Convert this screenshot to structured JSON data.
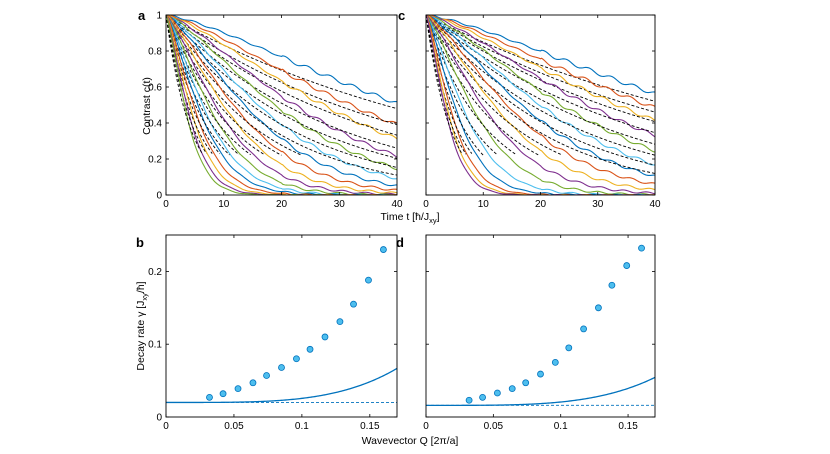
{
  "chart_data": [
    {
      "panel": "a",
      "type": "line",
      "xlim": [
        0,
        40
      ],
      "ylim": [
        0,
        1
      ],
      "xticks": [
        0,
        10,
        20,
        30,
        40
      ],
      "yticks": [
        0,
        0.2,
        0.4,
        0.6,
        0.8,
        1
      ],
      "ytick_labels": [
        "0",
        "0.2",
        "0.4",
        "0.6",
        "0.8",
        "1"
      ],
      "decay_rates": [
        0.018,
        0.023,
        0.027,
        0.033,
        0.039,
        0.046,
        0.054,
        0.063,
        0.074,
        0.086,
        0.1,
        0.116,
        0.134,
        0.155,
        0.18,
        0.205,
        0.23
      ],
      "grid": false
    },
    {
      "panel": "c",
      "type": "line",
      "xlim": [
        0,
        40
      ],
      "ylim": [
        0,
        1
      ],
      "xticks": [
        0,
        10,
        20,
        30,
        40
      ],
      "yticks": [
        0,
        0.2,
        0.4,
        0.6,
        0.8,
        1
      ],
      "decay_rates": [
        0.016,
        0.019,
        0.022,
        0.026,
        0.031,
        0.037,
        0.044,
        0.052,
        0.062,
        0.075,
        0.093,
        0.118,
        0.148,
        0.18,
        0.208,
        0.23
      ],
      "grid": false
    },
    {
      "panel": "b",
      "type": "scatter",
      "xlim": [
        0,
        0.17
      ],
      "ylim": [
        0,
        0.25
      ],
      "xticks": [
        0,
        0.05,
        0.1,
        0.15
      ],
      "xtick_labels": [
        "0",
        "0.05",
        "0.1",
        "0.15"
      ],
      "yticks": [
        0,
        0.1,
        0.2
      ],
      "ytick_labels": [
        "0",
        "0.1",
        "0.2"
      ],
      "points": {
        "x": [
          0.032,
          0.042,
          0.053,
          0.064,
          0.074,
          0.085,
          0.096,
          0.106,
          0.117,
          0.128,
          0.138,
          0.149,
          0.16
        ],
        "y": [
          0.027,
          0.032,
          0.039,
          0.047,
          0.057,
          0.068,
          0.08,
          0.093,
          0.11,
          0.131,
          0.155,
          0.188,
          0.23
        ]
      },
      "fit_curve": {
        "y0": 0.02,
        "coef": 0.0056,
        "power": 4
      },
      "baseline": 0.02,
      "grid": false
    },
    {
      "panel": "d",
      "type": "scatter",
      "xlim": [
        0,
        0.17
      ],
      "ylim": [
        0,
        0.25
      ],
      "xticks": [
        0,
        0.05,
        0.1,
        0.15
      ],
      "xtick_labels": [
        "0",
        "0.05",
        "0.1",
        "0.15"
      ],
      "yticks": [
        0,
        0.1,
        0.2
      ],
      "points": {
        "x": [
          0.032,
          0.042,
          0.053,
          0.064,
          0.074,
          0.085,
          0.096,
          0.106,
          0.117,
          0.128,
          0.138,
          0.149,
          0.16
        ],
        "y": [
          0.023,
          0.027,
          0.033,
          0.039,
          0.047,
          0.059,
          0.075,
          0.095,
          0.121,
          0.15,
          0.181,
          0.208,
          0.232
        ]
      },
      "fit_curve": {
        "y0": 0.016,
        "coef": 0.0046,
        "power": 4
      },
      "baseline": 0.016,
      "grid": false
    }
  ],
  "labels": {
    "ylabel_top": "Contrast c(t)",
    "xlabel_top_main": "Time t [ħ/J",
    "xlabel_top_sub": "xy",
    "xlabel_top_tail": "]",
    "ylabel_bottom_main": "Decay rate γ [J",
    "ylabel_bottom_sub": "xy",
    "ylabel_bottom_tail": "/ħ]",
    "xlabel_bottom": "Wavevector Q [2π/a]"
  },
  "colors": {
    "series": [
      "#0072BD",
      "#D95319",
      "#EDB120",
      "#7E2F8E",
      "#77AC30",
      "#4DBEEE"
    ],
    "fit": "#000000",
    "points_fill": "#4DBEEE",
    "points_edge": "#0072BD",
    "axes": "#000000"
  }
}
